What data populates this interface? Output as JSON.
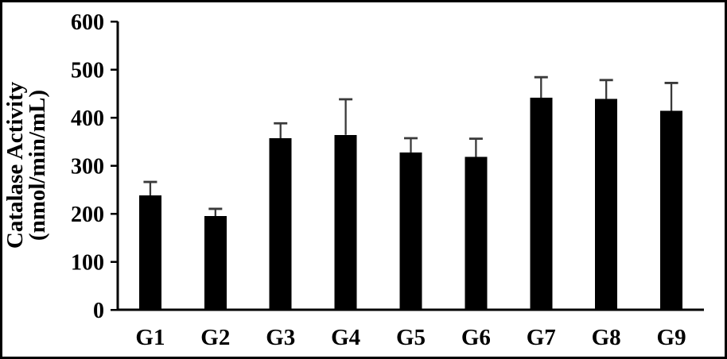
{
  "figure": {
    "background": "#ffffff",
    "border_color": "#000000"
  },
  "chart_data": {
    "type": "bar",
    "title": "",
    "categories": [
      "G1",
      "G2",
      "G3",
      "G4",
      "G5",
      "G6",
      "G7",
      "G8",
      "G9"
    ],
    "values": [
      238,
      195,
      357,
      364,
      327,
      318,
      441,
      439,
      414
    ],
    "errors_plus": [
      28,
      15,
      31,
      74,
      30,
      38,
      43,
      39,
      58
    ],
    "xlabel": "",
    "ylabel_lines": [
      "Catalase Activity",
      "(nmol/min/mL)"
    ],
    "ylim": [
      0,
      600
    ],
    "yticks": [
      0,
      100,
      200,
      300,
      400,
      500,
      600
    ],
    "grid": false,
    "legend": "none",
    "bar_color": "#000000",
    "error_bar_color": "#3a3a3a",
    "axis_color": "#000000"
  }
}
